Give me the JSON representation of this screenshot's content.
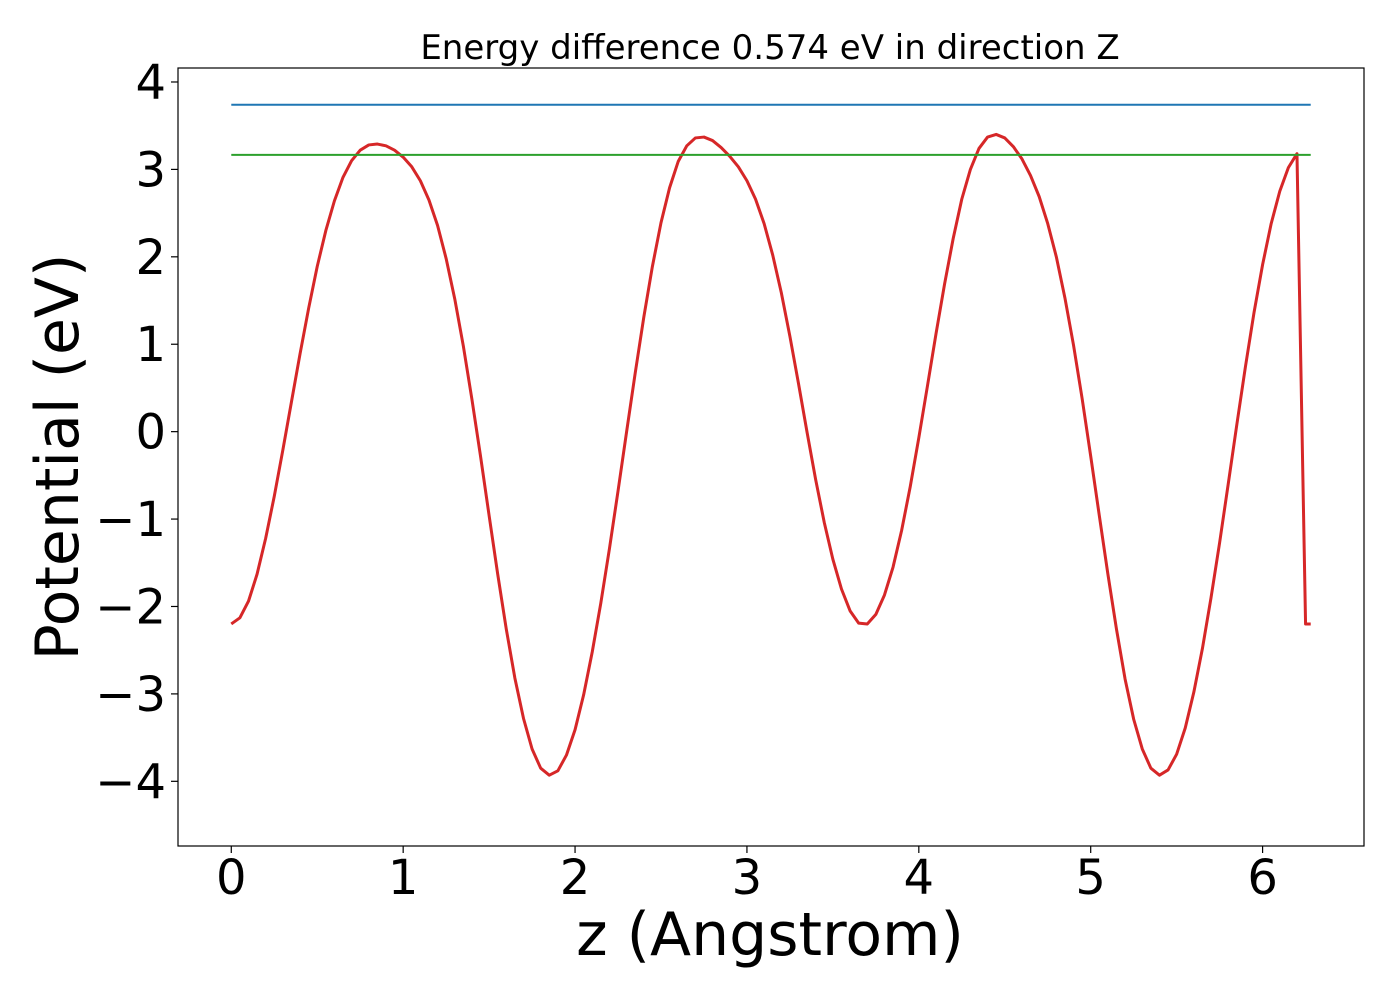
{
  "chart_data": {
    "type": "line",
    "title": "Energy difference 0.574 eV in direction Z",
    "xlabel": "z (Angstrom)",
    "ylabel": "Potential (eV)",
    "xlim": [
      -0.31,
      6.59
    ],
    "ylim": [
      -4.74,
      4.16
    ],
    "xticks": [
      0,
      1,
      2,
      3,
      4,
      5,
      6
    ],
    "yticks": [
      -4,
      -3,
      -2,
      -1,
      0,
      1,
      2,
      3,
      4
    ],
    "xtick_labels": [
      "0",
      "1",
      "2",
      "3",
      "4",
      "5",
      "6"
    ],
    "ytick_labels": [
      "−4",
      "−3",
      "−2",
      "−1",
      "0",
      "1",
      "2",
      "3",
      "4"
    ],
    "grid": false,
    "series": [
      {
        "color": "#d62728",
        "x": [
          0.0,
          0.05,
          0.1,
          0.15,
          0.2,
          0.25,
          0.3,
          0.35,
          0.4,
          0.45,
          0.5,
          0.55,
          0.6,
          0.65,
          0.7,
          0.75,
          0.8,
          0.85,
          0.9,
          0.95,
          1.0,
          1.05,
          1.1,
          1.15,
          1.2,
          1.25,
          1.3,
          1.35,
          1.4,
          1.45,
          1.5,
          1.55,
          1.6,
          1.65,
          1.7,
          1.75,
          1.8,
          1.85,
          1.9,
          1.95,
          2.0,
          2.05,
          2.1,
          2.15,
          2.2,
          2.25,
          2.3,
          2.35,
          2.4,
          2.45,
          2.5,
          2.55,
          2.6,
          2.65,
          2.7,
          2.75,
          2.8,
          2.85,
          2.9,
          2.95,
          3.0,
          3.05,
          3.1,
          3.15,
          3.2,
          3.25,
          3.3,
          3.35,
          3.4,
          3.45,
          3.5,
          3.55,
          3.6,
          3.65,
          3.7,
          3.75,
          3.8,
          3.85,
          3.9,
          3.95,
          4.0,
          4.05,
          4.1,
          4.15,
          4.2,
          4.25,
          4.3,
          4.35,
          4.4,
          4.45,
          4.5,
          4.55,
          4.6,
          4.65,
          4.7,
          4.75,
          4.8,
          4.85,
          4.9,
          4.95,
          5.0,
          5.05,
          5.1,
          5.15,
          5.2,
          5.25,
          5.3,
          5.35,
          5.4,
          5.45,
          5.5,
          5.55,
          5.6,
          5.65,
          5.7,
          5.75,
          5.8,
          5.85,
          5.9,
          5.95,
          6.0,
          6.05,
          6.1,
          6.15,
          6.2,
          6.25,
          6.28
        ],
        "y": [
          -2.2,
          -2.13,
          -1.94,
          -1.63,
          -1.22,
          -0.74,
          -0.21,
          0.34,
          0.89,
          1.41,
          1.89,
          2.3,
          2.64,
          2.91,
          3.1,
          3.22,
          3.28,
          3.29,
          3.27,
          3.22,
          3.14,
          3.03,
          2.87,
          2.65,
          2.36,
          1.98,
          1.52,
          0.98,
          0.37,
          -0.28,
          -0.96,
          -1.63,
          -2.26,
          -2.82,
          -3.28,
          -3.63,
          -3.85,
          -3.93,
          -3.88,
          -3.7,
          -3.41,
          -3.01,
          -2.52,
          -1.96,
          -1.34,
          -0.68,
          0.0,
          0.67,
          1.31,
          1.89,
          2.39,
          2.79,
          3.09,
          3.27,
          3.36,
          3.37,
          3.33,
          3.25,
          3.15,
          3.03,
          2.87,
          2.66,
          2.38,
          2.02,
          1.59,
          1.09,
          0.55,
          -0.01,
          -0.55,
          -1.04,
          -1.46,
          -1.8,
          -2.05,
          -2.19,
          -2.2,
          -2.09,
          -1.87,
          -1.55,
          -1.13,
          -0.63,
          -0.07,
          0.52,
          1.12,
          1.69,
          2.21,
          2.66,
          3.0,
          3.24,
          3.37,
          3.4,
          3.36,
          3.26,
          3.12,
          2.93,
          2.69,
          2.38,
          2.0,
          1.53,
          0.99,
          0.38,
          -0.28,
          -0.96,
          -1.63,
          -2.26,
          -2.83,
          -3.29,
          -3.63,
          -3.85,
          -3.93,
          -3.87,
          -3.69,
          -3.39,
          -2.98,
          -2.48,
          -1.9,
          -1.27,
          -0.6,
          0.08,
          0.74,
          1.36,
          1.91,
          2.38,
          2.75,
          3.02,
          3.18,
          -2.2,
          -2.2
        ]
      },
      {
        "color": "#1f77b4",
        "x": [
          0.0,
          6.28
        ],
        "y": [
          3.74,
          3.74
        ]
      },
      {
        "color": "#2ca02c",
        "x": [
          0.0,
          6.28
        ],
        "y": [
          3.166,
          3.166
        ]
      }
    ]
  }
}
